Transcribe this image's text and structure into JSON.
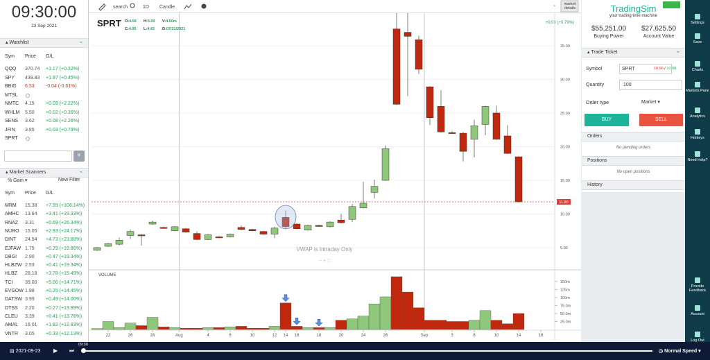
{
  "clock": {
    "time": "09:30:00",
    "date": "23 Sep 2021"
  },
  "watchlist": {
    "title": "Watchlist",
    "columns": [
      "Sym",
      "Price",
      "G/L"
    ],
    "rows": [
      {
        "sym": "QQQ",
        "price": "370.74",
        "change": "+1.17 (+0.32%)",
        "color": "#2e9e5b"
      },
      {
        "sym": "SPY",
        "price": "439.83",
        "change": "+1.97 (+0.45%)",
        "color": "#2e9e5b"
      },
      {
        "sym": "BBIG",
        "price": "6.53",
        "change": "-0.04 (-0.61%)",
        "color": "#d9342b"
      },
      {
        "sym": "MTSL"
      },
      {
        "sym": "NMTC",
        "price": "4.15",
        "change": "+0.09 (+2.22%)",
        "color": "#2e9e5b"
      },
      {
        "sym": "WHLM",
        "price": "5.50",
        "change": "+0.02 (+0.36%)",
        "color": "#2e9e5b"
      },
      {
        "sym": "SENS",
        "price": "3.62",
        "change": "+0.08 (+2.26%)",
        "color": "#2e9e5b"
      },
      {
        "sym": "JFIN",
        "price": "3.85",
        "change": "+0.03 (+0.79%)",
        "color": "#2e9e5b"
      },
      {
        "sym": "SPRT"
      }
    ]
  },
  "scanners": {
    "title": "Market Scanners",
    "filter": "% Gain",
    "new_filter": "New Filter",
    "columns": [
      "Sym",
      "Price",
      "G/L"
    ],
    "rows": [
      {
        "sym": "MRM",
        "price": "15.38",
        "change": "+7.99 (+108.14%)"
      },
      {
        "sym": "AMHC",
        "price": "13.64",
        "change": "+3.41 (+33.33%)"
      },
      {
        "sym": "RNAZ",
        "price": "3.31",
        "change": "+0.69 (+26.34%)"
      },
      {
        "sym": "NURO",
        "price": "15.05",
        "change": "+2.93 (+24.17%)"
      },
      {
        "sym": "DINT",
        "price": "24.54",
        "change": "+4.73 (+23.88%)"
      },
      {
        "sym": "EJFAW",
        "price": "1.75",
        "change": "+0.29 (+19.86%)"
      },
      {
        "sym": "DBGI",
        "price": "2.90",
        "change": "+0.47 (+19.34%)"
      },
      {
        "sym": "HLBZW",
        "price": "2.53",
        "change": "+0.41 (+19.34%)"
      },
      {
        "sym": "HLBZ",
        "price": "28.18",
        "change": "+3.78 (+15.49%)"
      },
      {
        "sym": "TCI",
        "price": "39.00",
        "change": "+5.00 (+14.71%)"
      },
      {
        "sym": "EVGOW",
        "price": "1.98",
        "change": "+0.25 (+14.45%)"
      },
      {
        "sym": "DATSW",
        "price": "3.99",
        "change": "+0.49 (+14.00%)"
      },
      {
        "sym": "DTSS",
        "price": "2.20",
        "change": "+0.27 (+13.99%)"
      },
      {
        "sym": "CLEU",
        "price": "3.39",
        "change": "+0.41 (+13.76%)"
      },
      {
        "sym": "AMAL",
        "price": "16.01",
        "change": "+1.82 (+12.83%)"
      },
      {
        "sym": "VNTR",
        "price": "3.05",
        "change": "+0.33 (+12.13%)"
      }
    ]
  },
  "toolbar": {
    "search": "search",
    "interval": "1D",
    "style": "Candle",
    "details": "market details"
  },
  "chart_data": {
    "type": "candlestick",
    "title": "SPRT",
    "legend": [
      {
        "label": "O:",
        "value": "4.56"
      },
      {
        "label": "H:",
        "value": "5.00"
      },
      {
        "label": "V:",
        "value": "4.50m"
      },
      {
        "label": "C:",
        "value": "4.95"
      },
      {
        "label": "L:",
        "value": "4.42"
      },
      {
        "label": "D:",
        "value": "07/21/2021"
      }
    ],
    "change": "+0.03 (+0.79%)",
    "open": [
      4.6,
      5.2,
      5.5,
      6.8,
      6.9,
      8.5,
      8.0,
      7.5,
      7.8,
      7.1,
      6.2,
      6.6,
      6.6,
      8.0,
      7.7,
      7.4,
      7.0,
      9.5,
      8.5,
      7.6,
      8.3,
      8.1,
      9.1,
      9.2,
      10.9,
      13.2,
      15.0,
      37.5,
      37.0,
      35.9,
      28.9,
      26.0,
      22.1,
      22.0,
      21.1,
      23.3,
      25.0,
      21.6,
      18.5
    ],
    "high": [
      5.1,
      5.7,
      6.5,
      7.7,
      7.0,
      9.0,
      8.1,
      8.2,
      7.9,
      7.4,
      7.0,
      6.7,
      7.1,
      8.3,
      7.8,
      7.5,
      8.1,
      10.5,
      8.6,
      8.4,
      8.4,
      8.9,
      10.0,
      11.5,
      14.8,
      15.1,
      20.2,
      40.0,
      40.0,
      36.5,
      29.0,
      28.4,
      22.3,
      22.2,
      24.0,
      26.1,
      26.1,
      23.2,
      18.6
    ],
    "low": [
      4.5,
      5.1,
      5.3,
      6.3,
      5.3,
      8.4,
      7.8,
      7.4,
      7.2,
      6.1,
      6.1,
      6.4,
      6.5,
      7.6,
      7.4,
      6.9,
      6.4,
      7.8,
      7.7,
      7.5,
      8.1,
      8.0,
      8.6,
      8.8,
      10.8,
      12.3,
      14.9,
      26.2,
      27.5,
      30.8,
      23.2,
      22.1,
      21.9,
      17.8,
      18.4,
      21.7,
      21.0,
      18.9,
      11.7
    ],
    "close": [
      5.0,
      5.6,
      6.1,
      7.4,
      6.8,
      8.8,
      7.9,
      8.1,
      7.3,
      6.2,
      6.9,
      6.5,
      7.0,
      7.7,
      7.5,
      7.0,
      7.9,
      8.1,
      7.8,
      8.3,
      8.2,
      8.8,
      8.7,
      11.1,
      11.6,
      14.1,
      19.7,
      26.3,
      36.4,
      31.5,
      24.3,
      22.2,
      22.0,
      19.3,
      23.1,
      26.0,
      21.1,
      19.0,
      11.8
    ],
    "up_color": "#8fc87b",
    "down_color": "#c0280e",
    "ylim": [
      1.8,
      39.74
    ],
    "yticks": [
      {
        "value": 5,
        "label": "5.00"
      },
      {
        "value": 10,
        "label": "10.00"
      },
      {
        "value": 15,
        "label": "15.00"
      },
      {
        "value": 20,
        "label": "20.00"
      },
      {
        "value": 25,
        "label": "25.00"
      },
      {
        "value": 30,
        "label": "30.00"
      },
      {
        "value": 35,
        "label": "35.00"
      }
    ],
    "xticks": [
      {
        "value": 1,
        "label": "22"
      },
      {
        "value": 3,
        "label": "26"
      },
      {
        "value": 5,
        "label": "28"
      },
      {
        "value": 7.4,
        "label": "Aug"
      },
      {
        "value": 10,
        "label": "4"
      },
      {
        "value": 12,
        "label": "6"
      },
      {
        "value": 14,
        "label": "10"
      },
      {
        "value": 16,
        "label": "12"
      },
      {
        "value": 17,
        "label": "14"
      },
      {
        "value": 18,
        "label": "16"
      },
      {
        "value": 20,
        "label": "18"
      },
      {
        "value": 22,
        "label": "20"
      },
      {
        "value": 24,
        "label": "24"
      },
      {
        "value": 26,
        "label": "26"
      },
      {
        "value": 29.5,
        "label": "Sep"
      },
      {
        "value": 32,
        "label": "3"
      },
      {
        "value": 34,
        "label": "8"
      },
      {
        "value": 36,
        "label": "10"
      },
      {
        "value": 38,
        "label": "14"
      },
      {
        "value": 40,
        "label": "16"
      }
    ],
    "last_price": {
      "value": 11.8,
      "label": "11.80"
    },
    "last_price_color": "#e0403a",
    "annotation": "VWAP is Intraday Only",
    "grid": true,
    "volume": {
      "title": "VOLUME",
      "values": [
        3,
        25,
        6,
        20,
        12,
        38,
        8,
        6,
        4,
        4,
        6,
        6,
        8,
        10,
        4,
        4,
        10,
        83,
        10,
        6,
        6,
        6,
        29,
        33,
        42,
        80,
        102,
        165,
        117,
        68,
        29,
        29,
        25,
        25,
        29,
        59,
        29,
        18,
        50
      ],
      "ylim": [
        0,
        180
      ],
      "yticks": [
        {
          "value": 25,
          "label": "25.0m"
        },
        {
          "value": 50,
          "label": "50.0m"
        },
        {
          "value": 75,
          "label": "75.0m"
        },
        {
          "value": 100,
          "label": "100m"
        },
        {
          "value": 125,
          "label": "125m"
        },
        {
          "value": 150,
          "label": "150m"
        }
      ]
    }
  },
  "account": {
    "brand": "TradingSim",
    "tagline": "your trading time machine",
    "buying_power": "$55,251.00",
    "buying_power_label": "Buying Power",
    "account_value": "$27,625.50",
    "account_value_label": "Account Value"
  },
  "ticket": {
    "title": "Trade Ticket",
    "symbol_label": "Symbol",
    "symbol": "SPRT",
    "bid": "10.96",
    "separator": "/",
    "ask": "10.98",
    "quantity_label": "Quantity",
    "quantity": "100",
    "order_type_label": "Order type",
    "order_type": "Market",
    "buy": "BUY",
    "sell": "SELL"
  },
  "panels": [
    {
      "title": "Orders",
      "note": "No pending orders"
    },
    {
      "title": "Positions",
      "note": "No open positions"
    },
    {
      "title": "History"
    }
  ],
  "nav": {
    "top": [
      "Settings",
      "Save",
      "Charts",
      "Markets Pane",
      "Analytics",
      "Hotkeys",
      "Need Help?"
    ],
    "bottom": [
      "Provide Feedback",
      "Account",
      "Log Out"
    ]
  },
  "player": {
    "date": "2021-09-23",
    "time": "09:30",
    "speed": "Normal Speed"
  }
}
